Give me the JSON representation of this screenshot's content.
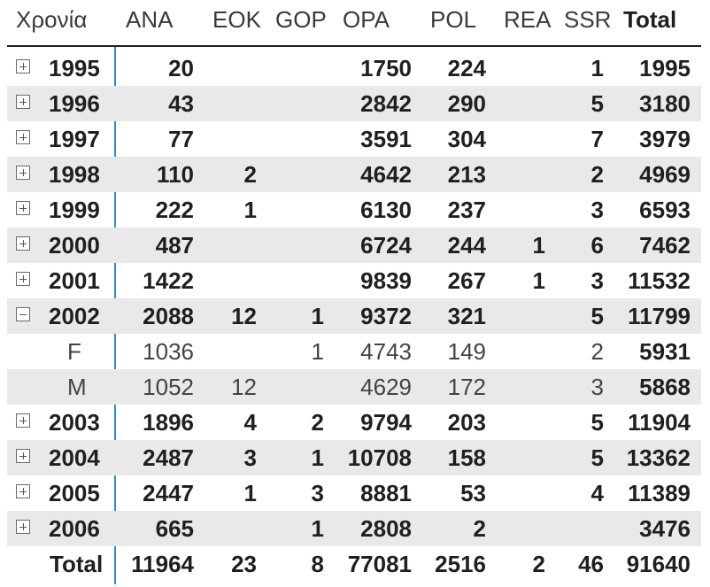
{
  "columns": {
    "label": "Χρονία",
    "ANA": "ANA",
    "EOK": "EOK",
    "GOP": "GOP",
    "OPA": "OPA",
    "POL": "POL",
    "REA": "REA",
    "SSR": "SSR",
    "Total": "Total"
  },
  "rows": [
    {
      "label": "1995",
      "ANA": "20",
      "EOK": "",
      "GOP": "",
      "OPA": "1750",
      "POL": "224",
      "REA": "",
      "SSR": "1",
      "Total": "1995"
    },
    {
      "label": "1996",
      "ANA": "43",
      "EOK": "",
      "GOP": "",
      "OPA": "2842",
      "POL": "290",
      "REA": "",
      "SSR": "5",
      "Total": "3180"
    },
    {
      "label": "1997",
      "ANA": "77",
      "EOK": "",
      "GOP": "",
      "OPA": "3591",
      "POL": "304",
      "REA": "",
      "SSR": "7",
      "Total": "3979"
    },
    {
      "label": "1998",
      "ANA": "110",
      "EOK": "2",
      "GOP": "",
      "OPA": "4642",
      "POL": "213",
      "REA": "",
      "SSR": "2",
      "Total": "4969"
    },
    {
      "label": "1999",
      "ANA": "222",
      "EOK": "1",
      "GOP": "",
      "OPA": "6130",
      "POL": "237",
      "REA": "",
      "SSR": "3",
      "Total": "6593"
    },
    {
      "label": "2000",
      "ANA": "487",
      "EOK": "",
      "GOP": "",
      "OPA": "6724",
      "POL": "244",
      "REA": "1",
      "SSR": "6",
      "Total": "7462"
    },
    {
      "label": "2001",
      "ANA": "1422",
      "EOK": "",
      "GOP": "",
      "OPA": "9839",
      "POL": "267",
      "REA": "1",
      "SSR": "3",
      "Total": "11532"
    },
    {
      "label": "2002",
      "ANA": "2088",
      "EOK": "12",
      "GOP": "1",
      "OPA": "9372",
      "POL": "321",
      "REA": "",
      "SSR": "5",
      "Total": "11799"
    },
    {
      "label": "F",
      "ANA": "1036",
      "EOK": "",
      "GOP": "1",
      "OPA": "4743",
      "POL": "149",
      "REA": "",
      "SSR": "2",
      "Total": "5931"
    },
    {
      "label": "M",
      "ANA": "1052",
      "EOK": "12",
      "GOP": "",
      "OPA": "4629",
      "POL": "172",
      "REA": "",
      "SSR": "3",
      "Total": "5868"
    },
    {
      "label": "2003",
      "ANA": "1896",
      "EOK": "4",
      "GOP": "2",
      "OPA": "9794",
      "POL": "203",
      "REA": "",
      "SSR": "5",
      "Total": "11904"
    },
    {
      "label": "2004",
      "ANA": "2487",
      "EOK": "3",
      "GOP": "1",
      "OPA": "10708",
      "POL": "158",
      "REA": "",
      "SSR": "5",
      "Total": "13362"
    },
    {
      "label": "2005",
      "ANA": "2447",
      "EOK": "1",
      "GOP": "3",
      "OPA": "8881",
      "POL": "53",
      "REA": "",
      "SSR": "4",
      "Total": "11389"
    },
    {
      "label": "2006",
      "ANA": "665",
      "EOK": "",
      "GOP": "1",
      "OPA": "2808",
      "POL": "2",
      "REA": "",
      "SSR": "",
      "Total": "3476"
    },
    {
      "label": "Total",
      "ANA": "11964",
      "EOK": "23",
      "GOP": "8",
      "OPA": "77081",
      "POL": "2516",
      "REA": "2",
      "SSR": "46",
      "Total": "91640"
    }
  ]
}
